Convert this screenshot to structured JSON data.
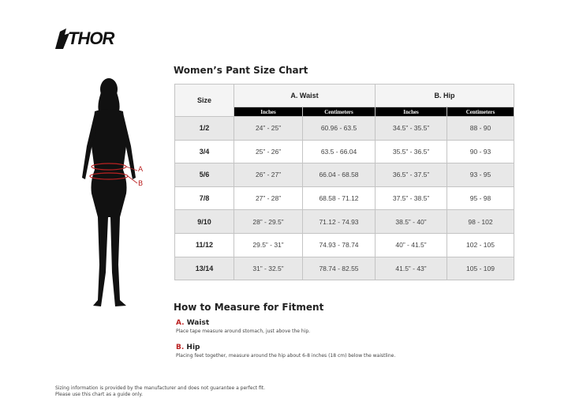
{
  "brand": {
    "logo_text": "THOR"
  },
  "figure": {
    "marker_a": "A",
    "marker_b": "B"
  },
  "table": {
    "title": "Women’s Pant Size Chart",
    "size_header": "Size",
    "waist_header": "A. Waist",
    "hip_header": "B. Hip",
    "sub_headers": [
      "Inches",
      "Centimeters",
      "Inches",
      "Centimeters"
    ],
    "rows": [
      [
        "1/2",
        "24” - 25”",
        "60.96 - 63.5",
        "34.5” - 35.5”",
        "88 - 90"
      ],
      [
        "3/4",
        "25” - 26”",
        "63.5 - 66.04",
        "35.5” - 36.5”",
        "90 - 93"
      ],
      [
        "5/6",
        "26” - 27”",
        "66.04 - 68.58",
        "36.5” - 37.5”",
        "93 - 95"
      ],
      [
        "7/8",
        "27” - 28”",
        "68.58 - 71.12",
        "37.5” - 38.5”",
        "95 - 98"
      ],
      [
        "9/10",
        "28” - 29.5”",
        "71.12 - 74.93",
        "38.5” - 40”",
        "98 - 102"
      ],
      [
        "11/12",
        "29.5” - 31”",
        "74.93 - 78.74",
        "40” - 41.5”",
        "102 - 105"
      ],
      [
        "13/14",
        "31” - 32.5”",
        "78.74 - 82.55",
        "41.5” - 43”",
        "105 - 109"
      ]
    ]
  },
  "measure": {
    "title": "How to Measure for Fitment",
    "waist_letter": "A.",
    "waist_label": "Waist",
    "waist_desc": "Place tape measure around stomach, just above the hip.",
    "hip_letter": "B.",
    "hip_label": "Hip",
    "hip_desc": "Placing feet together, measure around the hip about 6-8 inches (18 cm) below the waistline."
  },
  "footer": {
    "line1": "Sizing information is provided by the manufacturer and does not guarantee a perfect fit.",
    "line2": "Please use this chart as a guide only."
  },
  "colors": {
    "accent": "#b22222",
    "header_bg": "#000000"
  }
}
